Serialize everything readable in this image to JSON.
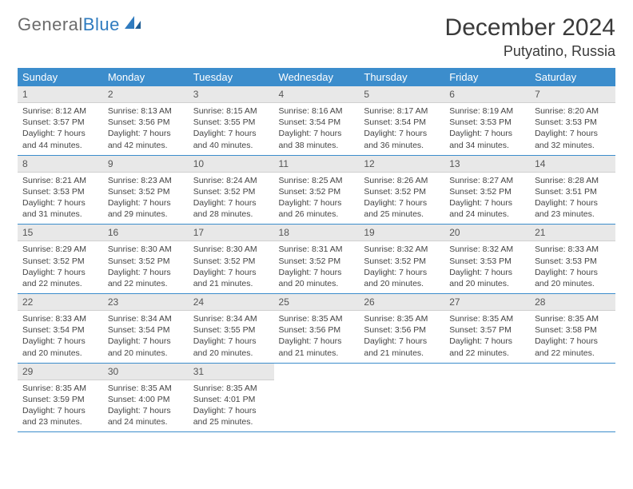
{
  "logo": {
    "general": "General",
    "blue": "Blue"
  },
  "title": "December 2024",
  "location": "Putyatino, Russia",
  "colors": {
    "header_bg": "#3c8dcc",
    "header_text": "#ffffff",
    "daynum_bg": "#e8e8e8",
    "border": "#3c8dcc",
    "logo_gray": "#6b6b6b",
    "logo_blue": "#2f7bbf"
  },
  "weekdays": [
    "Sunday",
    "Monday",
    "Tuesday",
    "Wednesday",
    "Thursday",
    "Friday",
    "Saturday"
  ],
  "weeks": [
    [
      {
        "n": "1",
        "sr": "Sunrise: 8:12 AM",
        "ss": "Sunset: 3:57 PM",
        "dl": "Daylight: 7 hours and 44 minutes."
      },
      {
        "n": "2",
        "sr": "Sunrise: 8:13 AM",
        "ss": "Sunset: 3:56 PM",
        "dl": "Daylight: 7 hours and 42 minutes."
      },
      {
        "n": "3",
        "sr": "Sunrise: 8:15 AM",
        "ss": "Sunset: 3:55 PM",
        "dl": "Daylight: 7 hours and 40 minutes."
      },
      {
        "n": "4",
        "sr": "Sunrise: 8:16 AM",
        "ss": "Sunset: 3:54 PM",
        "dl": "Daylight: 7 hours and 38 minutes."
      },
      {
        "n": "5",
        "sr": "Sunrise: 8:17 AM",
        "ss": "Sunset: 3:54 PM",
        "dl": "Daylight: 7 hours and 36 minutes."
      },
      {
        "n": "6",
        "sr": "Sunrise: 8:19 AM",
        "ss": "Sunset: 3:53 PM",
        "dl": "Daylight: 7 hours and 34 minutes."
      },
      {
        "n": "7",
        "sr": "Sunrise: 8:20 AM",
        "ss": "Sunset: 3:53 PM",
        "dl": "Daylight: 7 hours and 32 minutes."
      }
    ],
    [
      {
        "n": "8",
        "sr": "Sunrise: 8:21 AM",
        "ss": "Sunset: 3:53 PM",
        "dl": "Daylight: 7 hours and 31 minutes."
      },
      {
        "n": "9",
        "sr": "Sunrise: 8:23 AM",
        "ss": "Sunset: 3:52 PM",
        "dl": "Daylight: 7 hours and 29 minutes."
      },
      {
        "n": "10",
        "sr": "Sunrise: 8:24 AM",
        "ss": "Sunset: 3:52 PM",
        "dl": "Daylight: 7 hours and 28 minutes."
      },
      {
        "n": "11",
        "sr": "Sunrise: 8:25 AM",
        "ss": "Sunset: 3:52 PM",
        "dl": "Daylight: 7 hours and 26 minutes."
      },
      {
        "n": "12",
        "sr": "Sunrise: 8:26 AM",
        "ss": "Sunset: 3:52 PM",
        "dl": "Daylight: 7 hours and 25 minutes."
      },
      {
        "n": "13",
        "sr": "Sunrise: 8:27 AM",
        "ss": "Sunset: 3:52 PM",
        "dl": "Daylight: 7 hours and 24 minutes."
      },
      {
        "n": "14",
        "sr": "Sunrise: 8:28 AM",
        "ss": "Sunset: 3:51 PM",
        "dl": "Daylight: 7 hours and 23 minutes."
      }
    ],
    [
      {
        "n": "15",
        "sr": "Sunrise: 8:29 AM",
        "ss": "Sunset: 3:52 PM",
        "dl": "Daylight: 7 hours and 22 minutes."
      },
      {
        "n": "16",
        "sr": "Sunrise: 8:30 AM",
        "ss": "Sunset: 3:52 PM",
        "dl": "Daylight: 7 hours and 22 minutes."
      },
      {
        "n": "17",
        "sr": "Sunrise: 8:30 AM",
        "ss": "Sunset: 3:52 PM",
        "dl": "Daylight: 7 hours and 21 minutes."
      },
      {
        "n": "18",
        "sr": "Sunrise: 8:31 AM",
        "ss": "Sunset: 3:52 PM",
        "dl": "Daylight: 7 hours and 20 minutes."
      },
      {
        "n": "19",
        "sr": "Sunrise: 8:32 AM",
        "ss": "Sunset: 3:52 PM",
        "dl": "Daylight: 7 hours and 20 minutes."
      },
      {
        "n": "20",
        "sr": "Sunrise: 8:32 AM",
        "ss": "Sunset: 3:53 PM",
        "dl": "Daylight: 7 hours and 20 minutes."
      },
      {
        "n": "21",
        "sr": "Sunrise: 8:33 AM",
        "ss": "Sunset: 3:53 PM",
        "dl": "Daylight: 7 hours and 20 minutes."
      }
    ],
    [
      {
        "n": "22",
        "sr": "Sunrise: 8:33 AM",
        "ss": "Sunset: 3:54 PM",
        "dl": "Daylight: 7 hours and 20 minutes."
      },
      {
        "n": "23",
        "sr": "Sunrise: 8:34 AM",
        "ss": "Sunset: 3:54 PM",
        "dl": "Daylight: 7 hours and 20 minutes."
      },
      {
        "n": "24",
        "sr": "Sunrise: 8:34 AM",
        "ss": "Sunset: 3:55 PM",
        "dl": "Daylight: 7 hours and 20 minutes."
      },
      {
        "n": "25",
        "sr": "Sunrise: 8:35 AM",
        "ss": "Sunset: 3:56 PM",
        "dl": "Daylight: 7 hours and 21 minutes."
      },
      {
        "n": "26",
        "sr": "Sunrise: 8:35 AM",
        "ss": "Sunset: 3:56 PM",
        "dl": "Daylight: 7 hours and 21 minutes."
      },
      {
        "n": "27",
        "sr": "Sunrise: 8:35 AM",
        "ss": "Sunset: 3:57 PM",
        "dl": "Daylight: 7 hours and 22 minutes."
      },
      {
        "n": "28",
        "sr": "Sunrise: 8:35 AM",
        "ss": "Sunset: 3:58 PM",
        "dl": "Daylight: 7 hours and 22 minutes."
      }
    ],
    [
      {
        "n": "29",
        "sr": "Sunrise: 8:35 AM",
        "ss": "Sunset: 3:59 PM",
        "dl": "Daylight: 7 hours and 23 minutes."
      },
      {
        "n": "30",
        "sr": "Sunrise: 8:35 AM",
        "ss": "Sunset: 4:00 PM",
        "dl": "Daylight: 7 hours and 24 minutes."
      },
      {
        "n": "31",
        "sr": "Sunrise: 8:35 AM",
        "ss": "Sunset: 4:01 PM",
        "dl": "Daylight: 7 hours and 25 minutes."
      },
      null,
      null,
      null,
      null
    ]
  ]
}
